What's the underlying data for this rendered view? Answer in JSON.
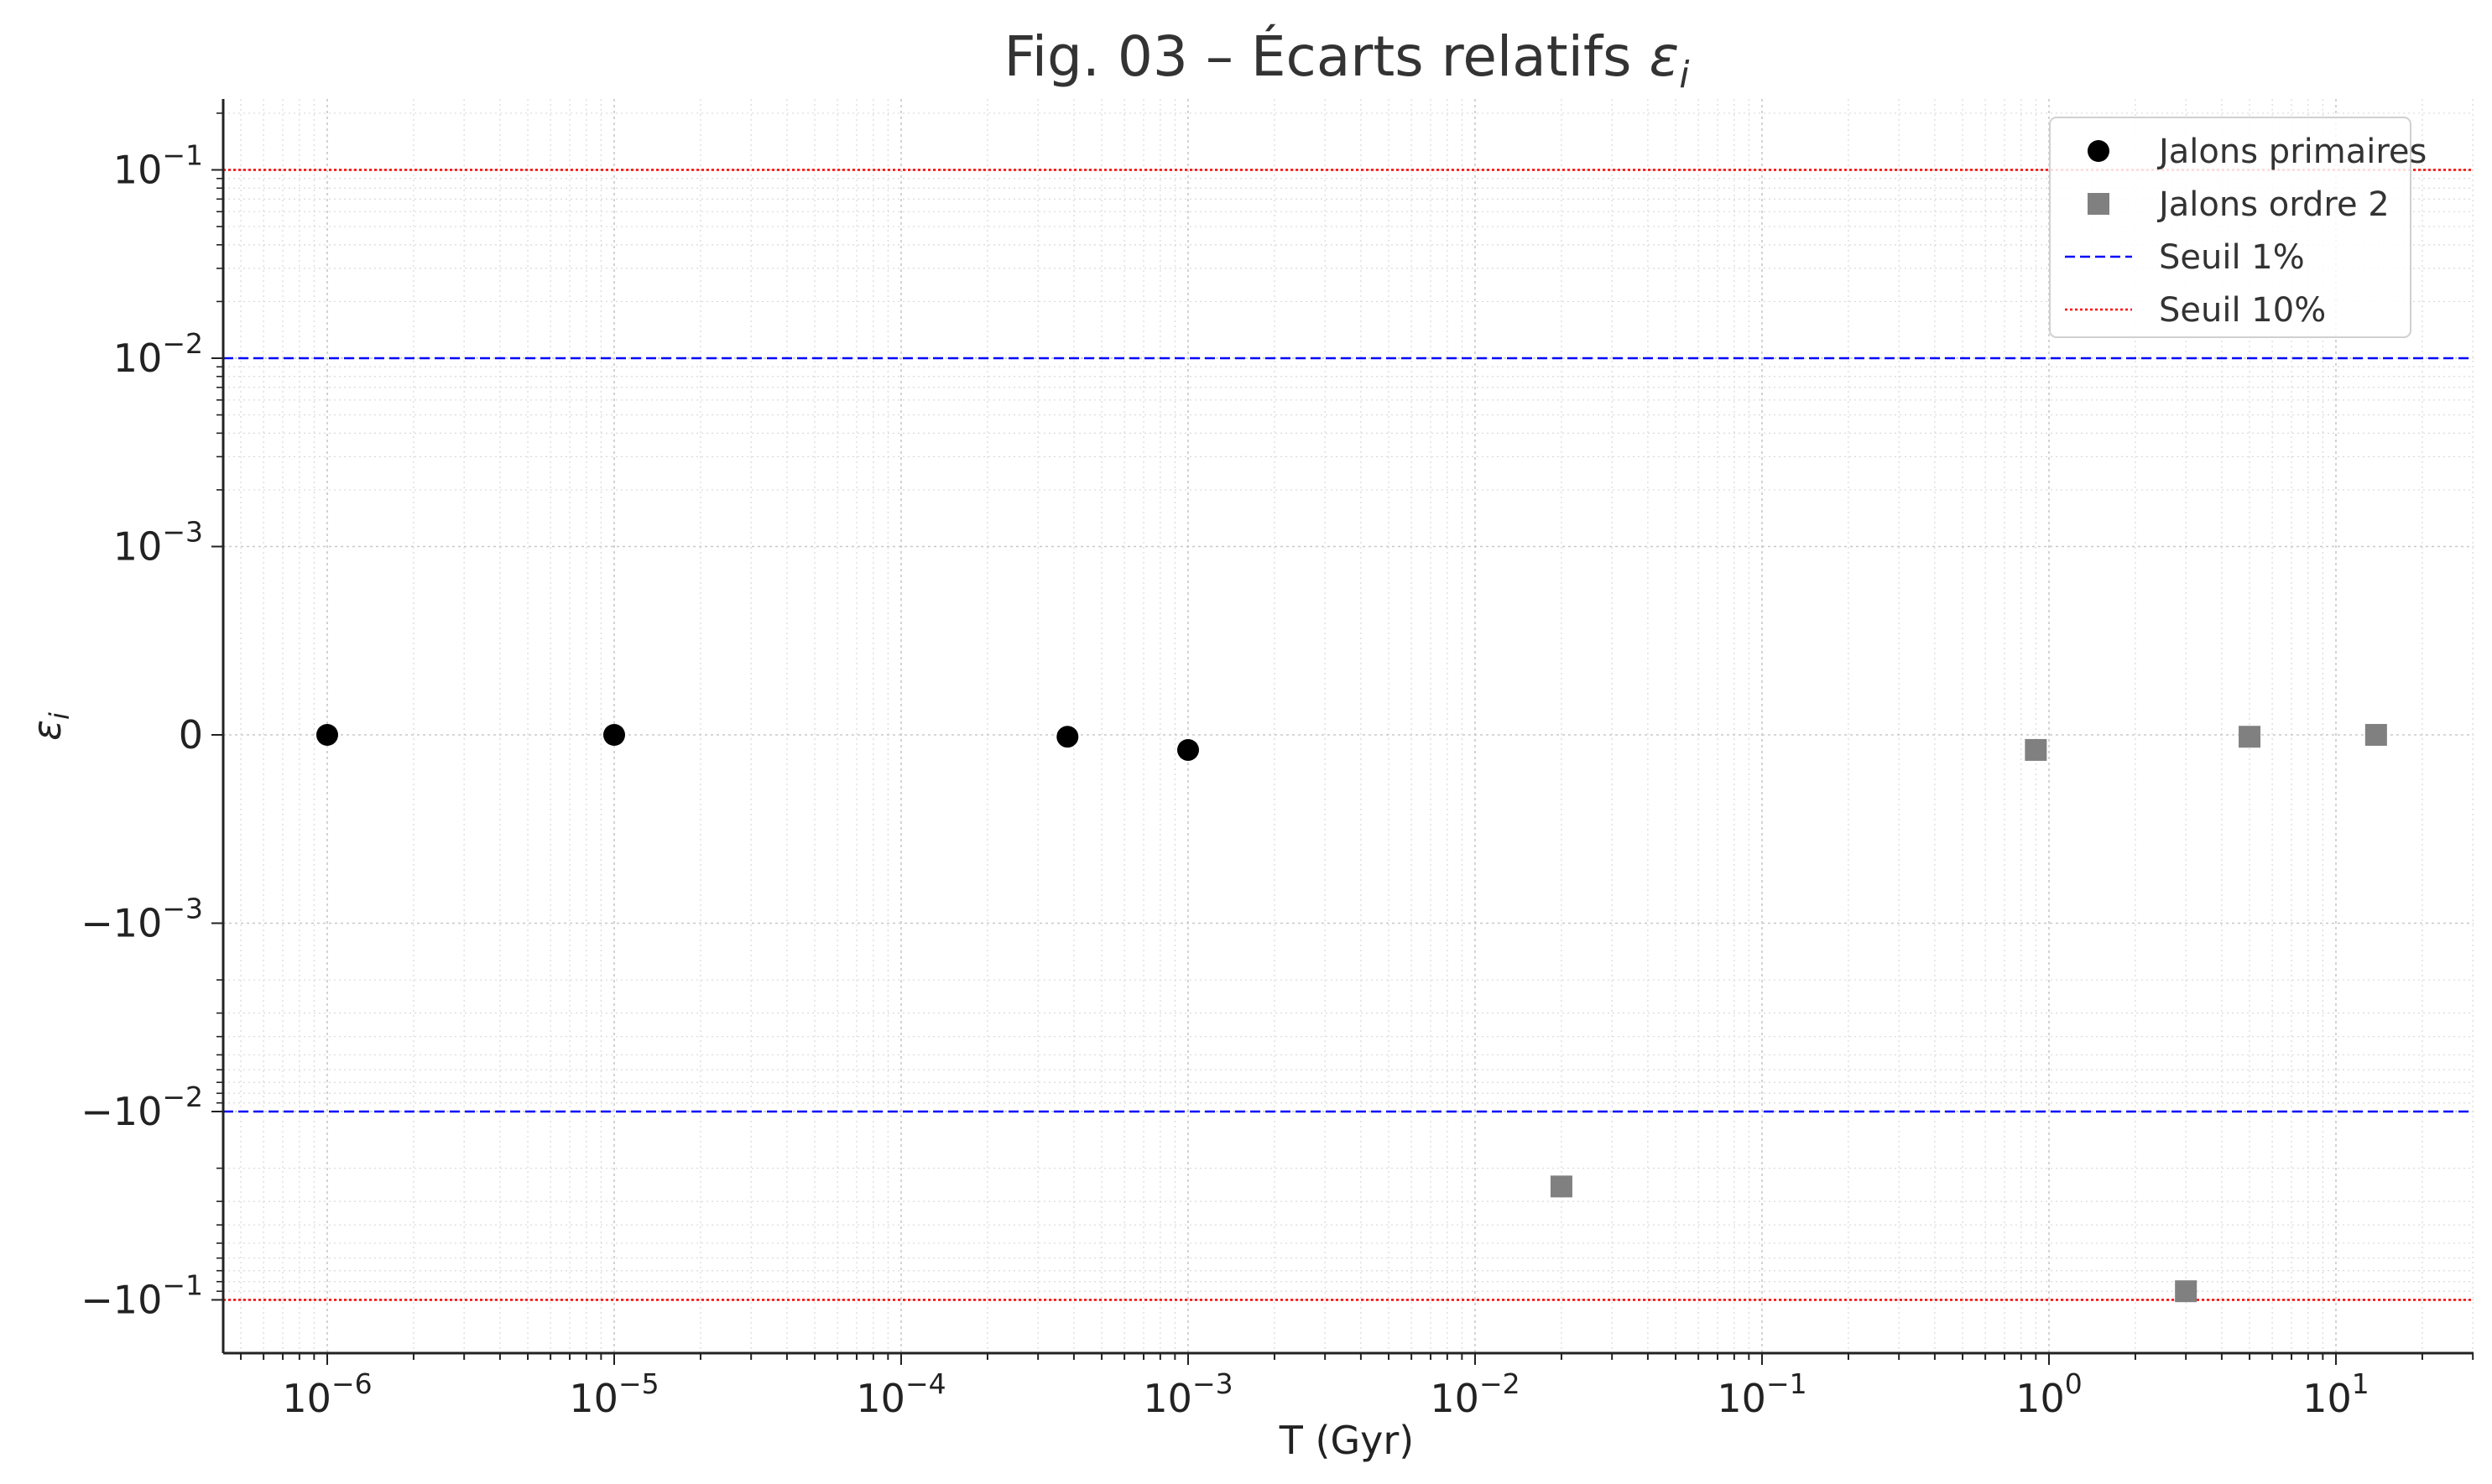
{
  "chart_data": {
    "type": "scatter",
    "title_main": "Fig. 03 – Écarts relatifs ",
    "title_symbol": "ε",
    "title_symbol_sub": "i",
    "xlabel": "T (Gyr)",
    "ylabel_symbol": "ε",
    "ylabel_sub": "i",
    "x_scale": "log",
    "y_scale": "symlog",
    "x_ticks": [
      {
        "base": "10",
        "exp": "−6"
      },
      {
        "base": "10",
        "exp": "−5"
      },
      {
        "base": "10",
        "exp": "−4"
      },
      {
        "base": "10",
        "exp": "−3"
      },
      {
        "base": "10",
        "exp": "−2"
      },
      {
        "base": "10",
        "exp": "−1"
      },
      {
        "base": "10",
        "exp": "0"
      },
      {
        "base": "10",
        "exp": "1"
      }
    ],
    "y_ticks": [
      {
        "base": "10",
        "exp": "−1"
      },
      {
        "base": "10",
        "exp": "−2"
      },
      {
        "base": "10",
        "exp": "−3"
      },
      {
        "base": "0",
        "exp": ""
      },
      {
        "base": "−10",
        "exp": "−3"
      },
      {
        "base": "−10",
        "exp": "−2"
      },
      {
        "base": "−10",
        "exp": "−1"
      }
    ],
    "grid": true,
    "legend_position": "top-right",
    "series": [
      {
        "name": "Jalons primaires",
        "marker": "circle",
        "color": "#000000",
        "points": [
          {
            "x": 1e-06,
            "y": 0.0
          },
          {
            "x": 1e-05,
            "y": 0.0
          },
          {
            "x": 0.00038,
            "y": -1e-05
          },
          {
            "x": 0.001,
            "y": -8e-05
          }
        ]
      },
      {
        "name": "Jalons ordre 2",
        "marker": "square",
        "color": "#808080",
        "points": [
          {
            "x": 0.02,
            "y": -0.025
          },
          {
            "x": 0.9,
            "y": -8e-05
          },
          {
            "x": 3.0,
            "y": -0.09
          },
          {
            "x": 5.0,
            "y": -1e-05
          },
          {
            "x": 13.8,
            "y": 0.0
          }
        ]
      }
    ],
    "reference_lines": [
      {
        "name": "Seuil 1%",
        "values": [
          0.01,
          -0.01
        ],
        "color": "#0000ff",
        "style": "dashed"
      },
      {
        "name": "Seuil 10%",
        "values": [
          0.1,
          -0.1
        ],
        "color": "#ff0000",
        "style": "dotted"
      }
    ]
  }
}
